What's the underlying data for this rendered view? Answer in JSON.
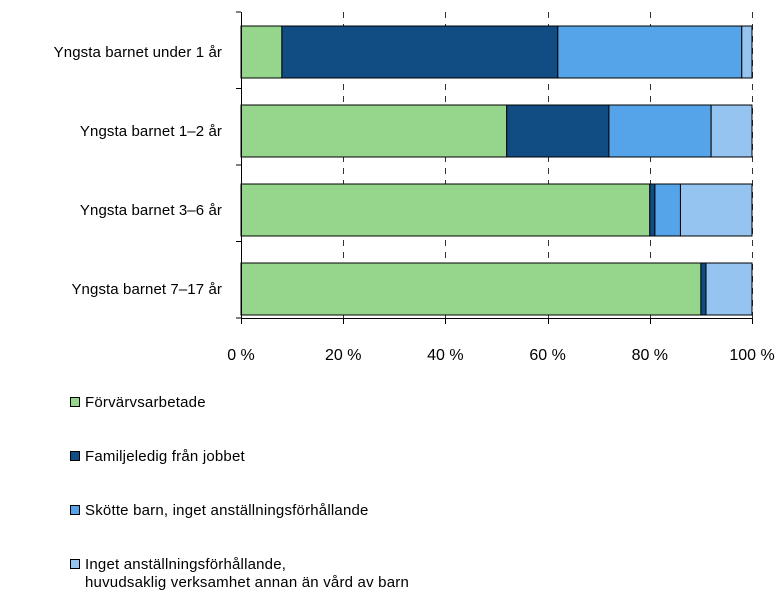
{
  "chart_data": {
    "type": "bar",
    "orientation": "horizontal",
    "stacked": true,
    "categories": [
      "Yngsta barnet under 1 år",
      "Yngsta barnet 1–2 år",
      "Yngsta barnet 3–6 år",
      "Yngsta barnet 7–17 år"
    ],
    "x_ticks": [
      "0 %",
      "20 %",
      "40 %",
      "60 %",
      "80 %",
      "100 %"
    ],
    "xlim": [
      0,
      100
    ],
    "grid": "vertical dashed",
    "legend_position": "bottom",
    "series": [
      {
        "name": "Förvärvsarbetade",
        "color": "#96d68c",
        "values": [
          8,
          52,
          80,
          90
        ]
      },
      {
        "name": "Familjeledig från jobbet",
        "color": "#114c83",
        "values": [
          54,
          20,
          1,
          1
        ]
      },
      {
        "name": "Skötte barn, inget anställningsförhållande",
        "color": "#55a3e8",
        "values": [
          36,
          20,
          5,
          0
        ]
      },
      {
        "name": "Inget anställningsförhållande,\nhuvudsaklig verksamhet  annan än vård av barn",
        "color": "#94c4ef",
        "values": [
          2,
          8,
          14,
          9
        ]
      }
    ]
  }
}
